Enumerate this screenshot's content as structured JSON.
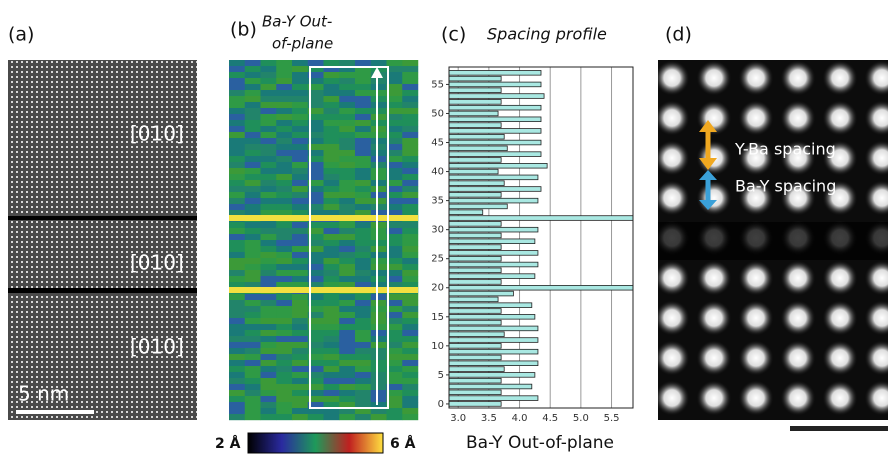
{
  "panels": {
    "a": {
      "label": "(a)",
      "directions": [
        "[010]",
        "[010]",
        "[010]"
      ],
      "scale_bar": "5 nm"
    },
    "b": {
      "label": "(b)",
      "title_lines": [
        "Ba-Y Out-",
        "of-plane"
      ],
      "colorbar_min": "2 Å",
      "colorbar_max": "6 Å"
    },
    "d": {
      "label": "(d)",
      "annotations": [
        "Y-Ba spacing",
        "Ba-Y spacing"
      ]
    }
  },
  "chart_data": {
    "type": "barh",
    "label": "(c)",
    "title": "Spacing profile",
    "x_label": "Ba-Y Out-of-plane",
    "categories": [
      0,
      1,
      2,
      3,
      4,
      5,
      6,
      7,
      8,
      9,
      10,
      11,
      12,
      13,
      14,
      15,
      16,
      17,
      18,
      19,
      20,
      21,
      22,
      23,
      24,
      25,
      26,
      27,
      28,
      29,
      30,
      31,
      32,
      33,
      34,
      35,
      36,
      37,
      38,
      39,
      40,
      41,
      42,
      43,
      44,
      45,
      46,
      47,
      48,
      49,
      50,
      51,
      52,
      53,
      54,
      55,
      56,
      57
    ],
    "values": [
      3.7,
      4.3,
      3.7,
      4.2,
      3.7,
      4.25,
      3.75,
      4.3,
      3.7,
      4.3,
      3.7,
      4.3,
      3.75,
      4.3,
      3.7,
      4.25,
      3.7,
      4.2,
      3.65,
      3.9,
      5.85,
      3.7,
      4.25,
      3.7,
      4.3,
      3.7,
      4.3,
      3.7,
      4.25,
      3.7,
      4.3,
      3.7,
      5.85,
      3.4,
      3.8,
      4.3,
      3.7,
      4.35,
      3.75,
      4.3,
      3.65,
      4.45,
      3.7,
      4.35,
      3.8,
      4.35,
      3.75,
      4.35,
      3.7,
      4.35,
      3.65,
      4.35,
      3.7,
      4.4,
      3.7,
      4.35,
      3.7,
      4.35
    ],
    "color": "#a9e8e2",
    "xlim": [
      2.85,
      5.85
    ],
    "xticks": [
      {
        "value": 3,
        "label": "3.0"
      },
      {
        "value": 3.5,
        "label": "3.5"
      },
      {
        "value": 4,
        "label": "4.0"
      },
      {
        "value": 4.5,
        "label": "4.5"
      },
      {
        "value": 5,
        "label": "5.0"
      },
      {
        "value": 5.5,
        "label": "5.5"
      }
    ],
    "ylim": [
      -0.7,
      58
    ],
    "yticks": [
      0,
      5,
      10,
      15,
      20,
      25,
      30,
      35,
      40,
      45,
      50,
      55
    ],
    "grid": true
  }
}
